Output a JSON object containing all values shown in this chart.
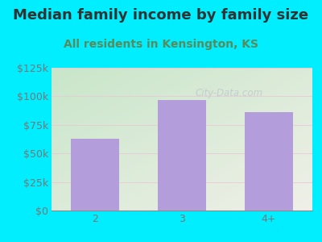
{
  "title": "Median family income by family size",
  "subtitle": "All residents in Kensington, KS",
  "categories": [
    "2",
    "3",
    "4+"
  ],
  "values": [
    63000,
    97000,
    86000
  ],
  "bar_color": "#b39ddb",
  "background_color": "#00eeff",
  "plot_bg_color_left": "#c8e6c9",
  "plot_bg_color_right": "#f0f0e8",
  "title_color": "#333333",
  "subtitle_color": "#5a8a5a",
  "tick_label_color": "#777777",
  "ylim": [
    0,
    125000
  ],
  "yticks": [
    0,
    25000,
    50000,
    75000,
    100000,
    125000
  ],
  "ytick_labels": [
    "$0",
    "$25k",
    "$50k",
    "$75k",
    "$100k",
    "$125k"
  ],
  "watermark": "City-Data.com",
  "watermark_color": "#c0c8cc",
  "title_fontsize": 13,
  "subtitle_fontsize": 10,
  "tick_fontsize": 9
}
